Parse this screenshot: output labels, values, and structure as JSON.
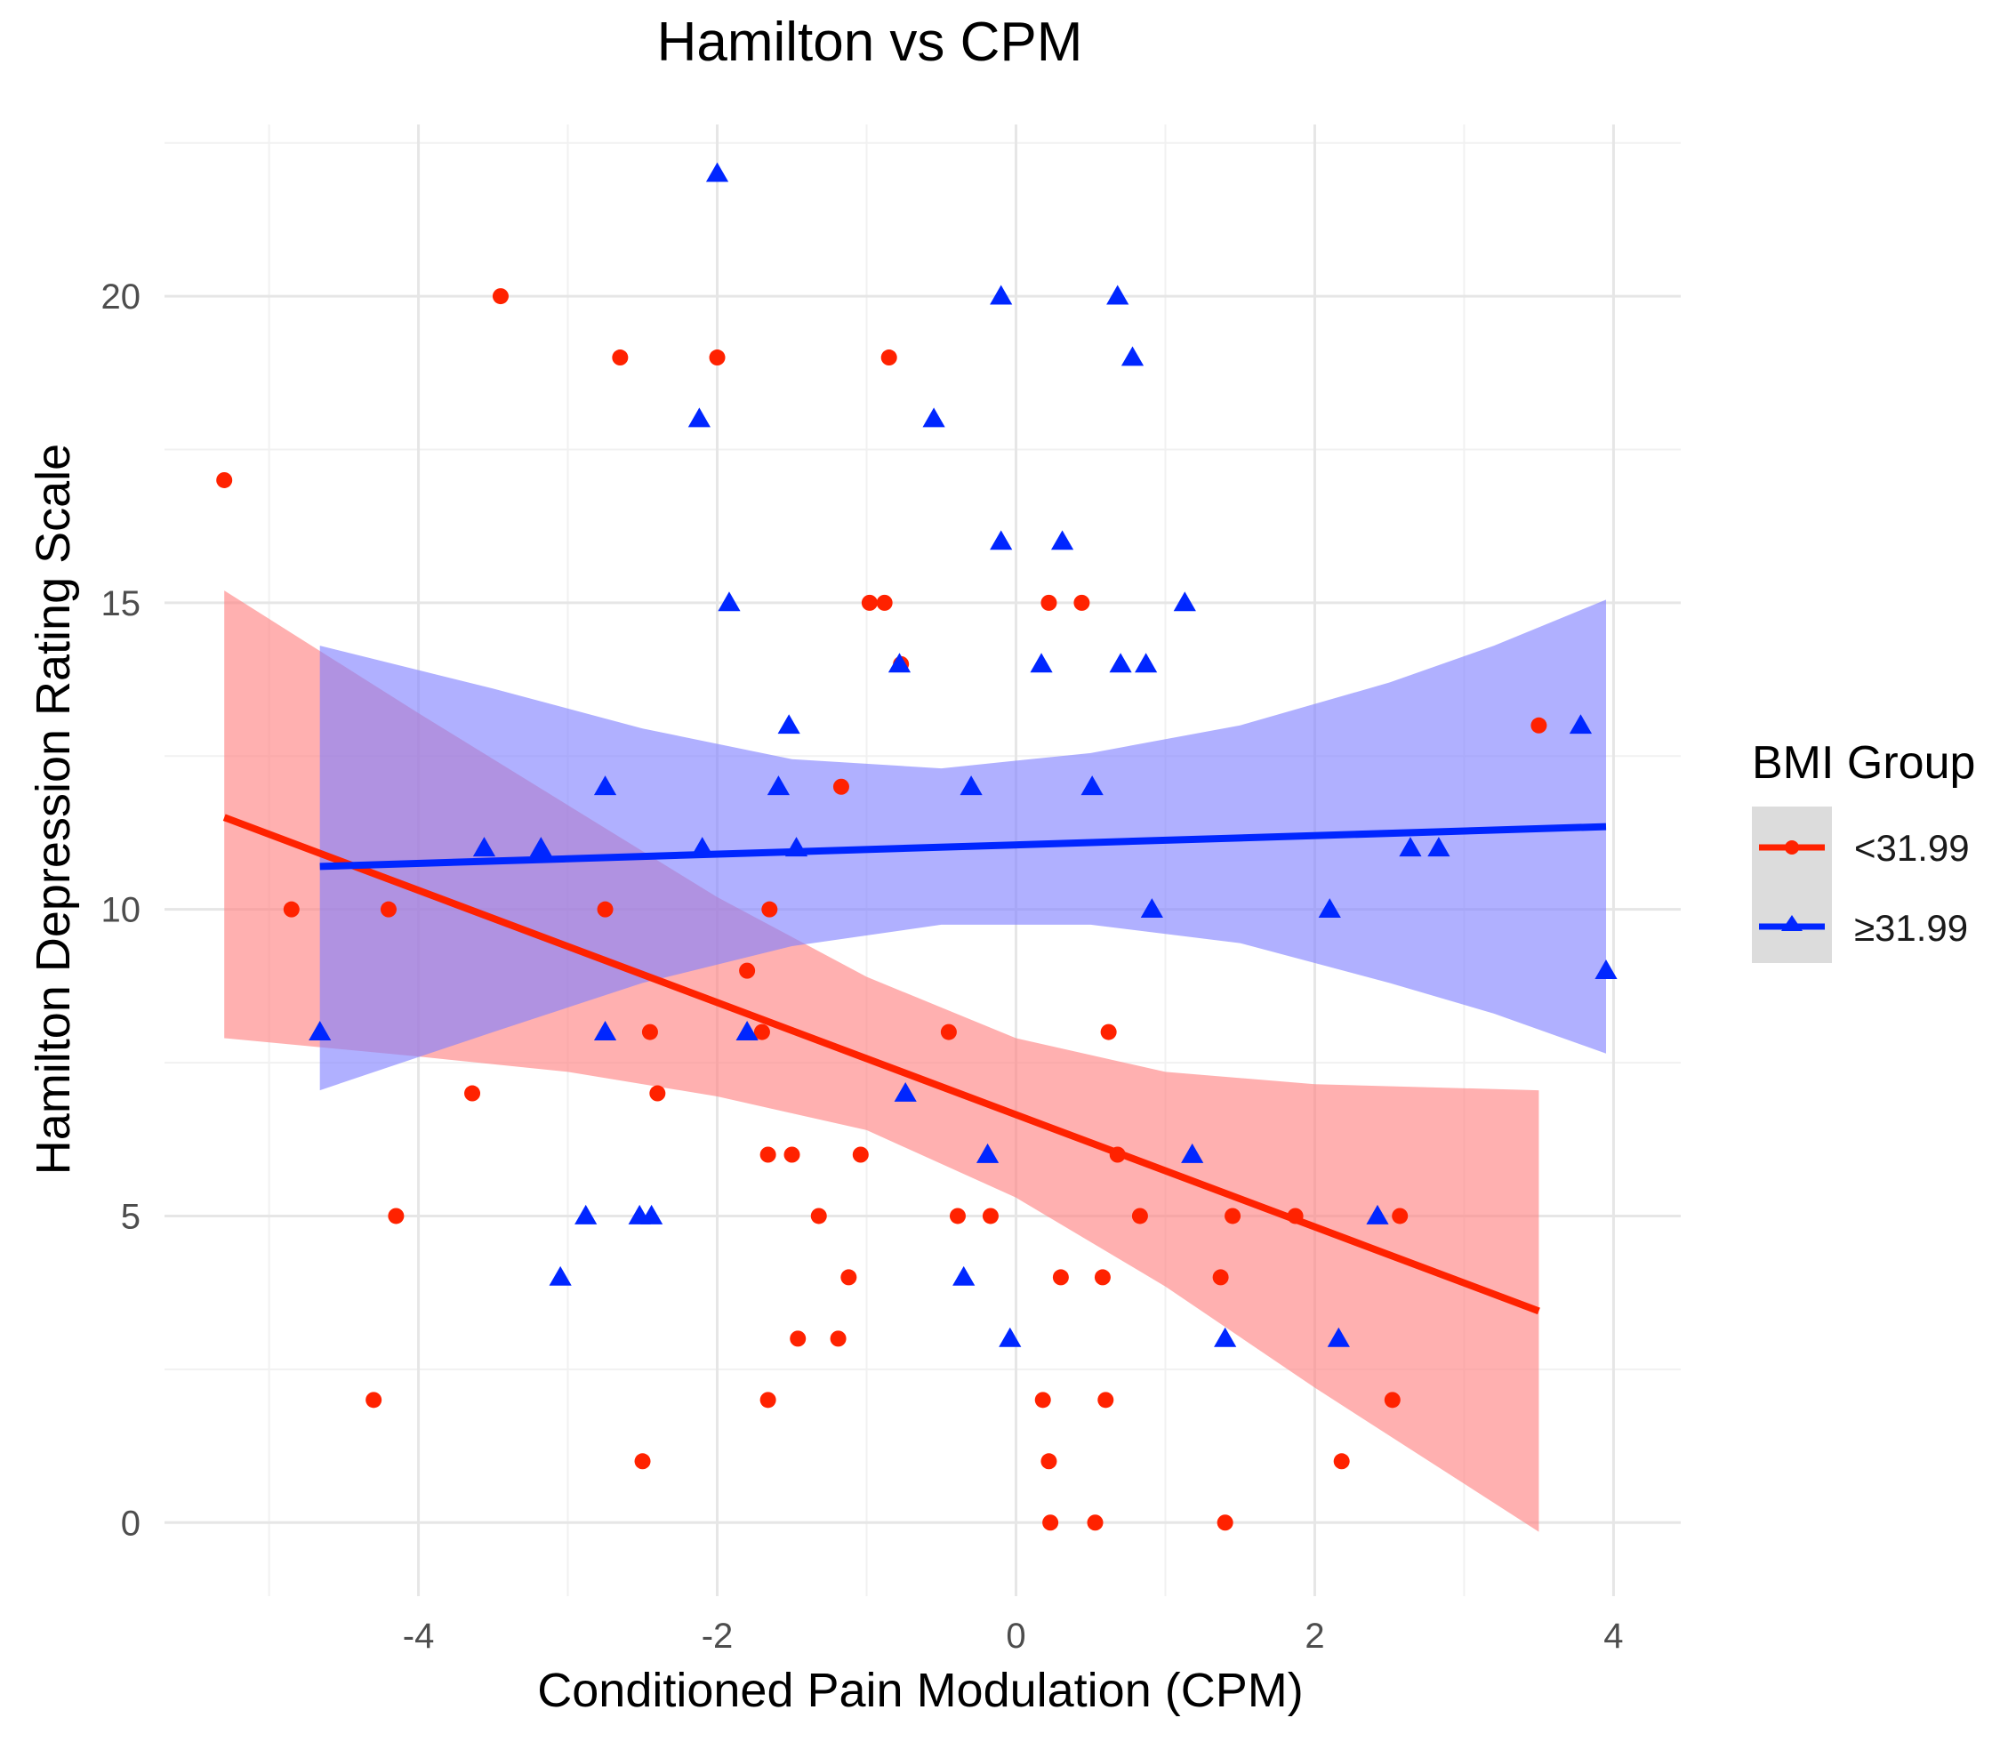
{
  "chart_data": {
    "type": "scatter",
    "title": "Hamilton vs CPM",
    "xlabel": "Conditioned Pain Modulation (CPM)",
    "ylabel": "Hamilton Depression Rating Scale",
    "xlim": [
      -5.7,
      4.45
    ],
    "ylim": [
      -1.2,
      22.8
    ],
    "x_ticks": [
      -4,
      -2,
      0,
      2,
      4
    ],
    "y_ticks": [
      0,
      5,
      10,
      15,
      20
    ],
    "x_tick_labels": [
      "-4",
      "-2",
      "0",
      "2",
      "4"
    ],
    "y_tick_labels": [
      "0",
      "5",
      "10",
      "15",
      "20"
    ],
    "grid": true,
    "legend": {
      "title": "BMI Group",
      "position": "right",
      "entries": [
        "<31.99",
        "≥31.99"
      ]
    },
    "series": [
      {
        "name": "<31.99",
        "color": "#ff2200",
        "marker": "circle",
        "points": [
          [
            -5.3,
            17
          ],
          [
            -3.45,
            20
          ],
          [
            -2.65,
            19
          ],
          [
            -2.0,
            19
          ],
          [
            -0.85,
            19
          ],
          [
            -0.98,
            15
          ],
          [
            -0.88,
            15
          ],
          [
            0.22,
            15
          ],
          [
            0.44,
            15
          ],
          [
            -0.77,
            14
          ],
          [
            3.5,
            13
          ],
          [
            -1.17,
            12
          ],
          [
            -4.85,
            10
          ],
          [
            -4.2,
            10
          ],
          [
            -2.75,
            10
          ],
          [
            -1.65,
            10
          ],
          [
            -1.8,
            9
          ],
          [
            -2.45,
            8
          ],
          [
            -1.7,
            8
          ],
          [
            -0.45,
            8
          ],
          [
            0.62,
            8
          ],
          [
            -3.64,
            7
          ],
          [
            -2.4,
            7
          ],
          [
            -1.66,
            6
          ],
          [
            -1.5,
            6
          ],
          [
            -1.04,
            6
          ],
          [
            0.68,
            6
          ],
          [
            -4.15,
            5
          ],
          [
            -1.32,
            5
          ],
          [
            -0.39,
            5
          ],
          [
            -0.17,
            5
          ],
          [
            0.83,
            5
          ],
          [
            1.45,
            5
          ],
          [
            1.87,
            5
          ],
          [
            2.57,
            5
          ],
          [
            -1.12,
            4
          ],
          [
            0.3,
            4
          ],
          [
            0.58,
            4
          ],
          [
            1.37,
            4
          ],
          [
            -1.46,
            3
          ],
          [
            -1.19,
            3
          ],
          [
            -4.3,
            2
          ],
          [
            -1.66,
            2
          ],
          [
            0.18,
            2
          ],
          [
            0.6,
            2
          ],
          [
            2.52,
            2
          ],
          [
            -2.5,
            1
          ],
          [
            0.22,
            1
          ],
          [
            2.18,
            1
          ],
          [
            0.23,
            0
          ],
          [
            0.53,
            0
          ],
          [
            1.4,
            0
          ]
        ]
      },
      {
        "name": "≥31.99",
        "color": "#0026ff",
        "marker": "triangle",
        "points": [
          [
            -2.0,
            22
          ],
          [
            -0.1,
            20
          ],
          [
            0.68,
            20
          ],
          [
            0.78,
            19
          ],
          [
            -2.12,
            18
          ],
          [
            -0.55,
            18
          ],
          [
            -0.1,
            16
          ],
          [
            0.31,
            16
          ],
          [
            -1.92,
            15
          ],
          [
            1.13,
            15
          ],
          [
            -0.78,
            14
          ],
          [
            0.17,
            14
          ],
          [
            0.7,
            14
          ],
          [
            0.87,
            14
          ],
          [
            -1.52,
            13
          ],
          [
            3.78,
            13
          ],
          [
            -2.75,
            12
          ],
          [
            -1.59,
            12
          ],
          [
            -0.3,
            12
          ],
          [
            0.51,
            12
          ],
          [
            -3.56,
            11
          ],
          [
            -3.18,
            11
          ],
          [
            -2.1,
            11
          ],
          [
            -1.47,
            11
          ],
          [
            2.64,
            11
          ],
          [
            2.83,
            11
          ],
          [
            0.91,
            10
          ],
          [
            2.1,
            10
          ],
          [
            3.95,
            9
          ],
          [
            -4.66,
            8
          ],
          [
            -2.75,
            8
          ],
          [
            -1.8,
            8
          ],
          [
            -0.74,
            7
          ],
          [
            -0.19,
            6
          ],
          [
            1.18,
            6
          ],
          [
            -2.88,
            5
          ],
          [
            -2.52,
            5
          ],
          [
            -2.44,
            5
          ],
          [
            2.42,
            5
          ],
          [
            -3.05,
            4
          ],
          [
            -0.35,
            4
          ],
          [
            -0.04,
            3
          ],
          [
            1.4,
            3
          ],
          [
            2.16,
            3
          ]
        ]
      }
    ],
    "fit_lines": [
      {
        "series": "<31.99",
        "color": "#ff2200",
        "fill": "#ff8080",
        "x_range": [
          -5.3,
          3.5
        ],
        "line": [
          11.5,
          3.45
        ],
        "ci_upper": [
          15.2,
          7.05
        ],
        "ci_lower": [
          7.9,
          -0.15
        ],
        "ci_steps": [
          [
            -5.3,
            15.2,
            7.9
          ],
          [
            -4.0,
            13.2,
            7.6
          ],
          [
            -3.0,
            11.7,
            7.35
          ],
          [
            -2.0,
            10.2,
            6.95
          ],
          [
            -1.0,
            8.9,
            6.4
          ],
          [
            0.0,
            7.9,
            5.3
          ],
          [
            1.0,
            7.35,
            3.85
          ],
          [
            2.0,
            7.15,
            2.2
          ],
          [
            3.5,
            7.05,
            -0.15
          ]
        ]
      },
      {
        "series": "≥31.99",
        "color": "#0026ff",
        "fill": "#8080ff",
        "x_range": [
          -4.66,
          3.95
        ],
        "line": [
          10.7,
          11.35
        ],
        "ci_steps": [
          [
            -4.66,
            14.3,
            7.05
          ],
          [
            -3.5,
            13.6,
            8.0
          ],
          [
            -2.5,
            12.95,
            8.8
          ],
          [
            -1.5,
            12.45,
            9.4
          ],
          [
            -0.5,
            12.3,
            9.75
          ],
          [
            0.5,
            12.55,
            9.75
          ],
          [
            1.5,
            13.0,
            9.45
          ],
          [
            2.5,
            13.7,
            8.8
          ],
          [
            3.2,
            14.3,
            8.3
          ],
          [
            3.95,
            15.05,
            7.65
          ]
        ]
      }
    ]
  }
}
